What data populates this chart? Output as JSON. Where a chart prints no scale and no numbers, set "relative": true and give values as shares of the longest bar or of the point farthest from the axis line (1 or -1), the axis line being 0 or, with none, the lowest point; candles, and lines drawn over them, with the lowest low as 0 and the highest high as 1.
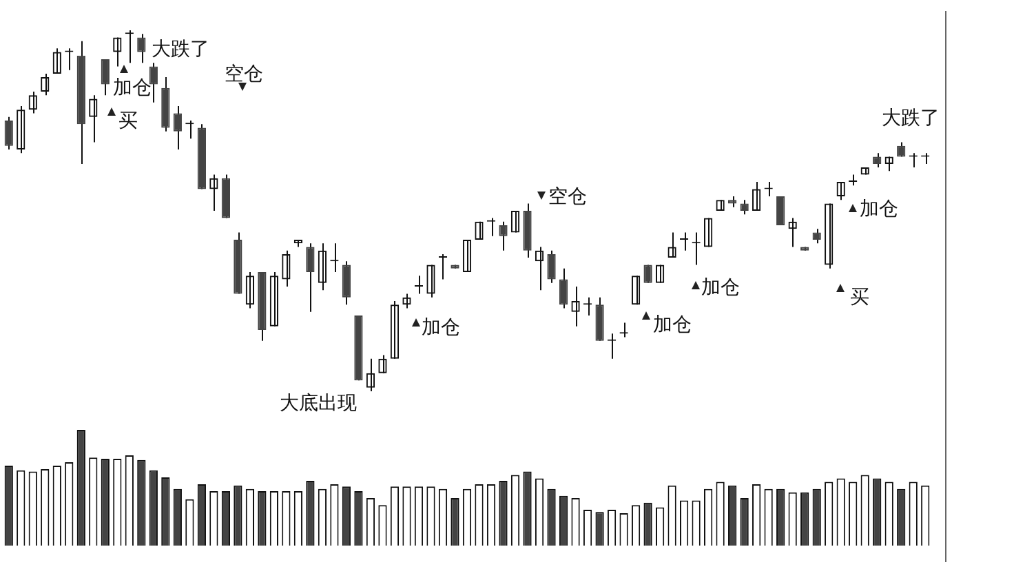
{
  "chart_data": [
    {
      "type": "candlestick",
      "relative": true,
      "categories": [
        null,
        null,
        null,
        null,
        null,
        null,
        null,
        null,
        null,
        null,
        null,
        null,
        null,
        null,
        null,
        null,
        null,
        null,
        null,
        null,
        null,
        null,
        null,
        null,
        null,
        null,
        null,
        null,
        null,
        null,
        null,
        null,
        null,
        null,
        null,
        null,
        null,
        null,
        null,
        null,
        null,
        null,
        null,
        null,
        null,
        null,
        null,
        null,
        null,
        null,
        null,
        null,
        null,
        null,
        null,
        null,
        null,
        null,
        null,
        null,
        null,
        null,
        null,
        null,
        null,
        null,
        null,
        null,
        null,
        null,
        null,
        null,
        null,
        null,
        null,
        null,
        null
      ],
      "ohlc": [
        [
          0.75,
          0.76,
          0.67,
          0.68
        ],
        [
          0.67,
          0.79,
          0.66,
          0.78
        ],
        [
          0.78,
          0.83,
          0.77,
          0.82
        ],
        [
          0.83,
          0.88,
          0.82,
          0.87
        ],
        [
          0.88,
          0.95,
          0.88,
          0.94
        ],
        [
          0.94,
          0.95,
          0.89,
          0.94
        ],
        [
          0.93,
          0.97,
          0.63,
          0.74
        ],
        [
          0.76,
          0.82,
          0.69,
          0.81
        ],
        [
          0.92,
          0.92,
          0.82,
          0.85
        ],
        [
          0.94,
          0.98,
          0.9,
          0.98
        ],
        [
          0.99,
          1,
          0.91,
          0.99
        ],
        [
          0.98,
          0.99,
          0.91,
          0.94
        ],
        [
          0.9,
          0.91,
          0.8,
          0.85
        ],
        [
          0.84,
          0.87,
          0.72,
          0.73
        ],
        [
          0.77,
          0.79,
          0.67,
          0.72
        ],
        [
          0.74,
          0.75,
          0.7,
          0.74
        ],
        [
          0.73,
          0.74,
          0.56,
          0.56
        ],
        [
          0.56,
          0.6,
          0.5,
          0.59
        ],
        [
          0.59,
          0.6,
          0.48,
          0.48
        ],
        [
          0.42,
          0.44,
          0.27,
          0.27
        ],
        [
          0.24,
          0.33,
          0.23,
          0.32
        ],
        [
          0.33,
          0.33,
          0.14,
          0.17
        ],
        [
          0.18,
          0.33,
          0.18,
          0.32
        ],
        [
          0.31,
          0.39,
          0.29,
          0.38
        ],
        [
          0.41,
          0.42,
          0.4,
          0.42
        ],
        [
          0.4,
          0.41,
          0.22,
          0.33
        ],
        [
          0.3,
          0.41,
          0.28,
          0.39
        ],
        [
          0.36,
          0.41,
          0.33,
          0.36
        ],
        [
          0.35,
          0.36,
          0.24,
          0.26
        ],
        [
          0.21,
          0.21,
          0.03,
          0.03
        ],
        [
          0.01,
          0.09,
          0,
          0.05
        ],
        [
          0.05,
          0.1,
          0.05,
          0.09
        ],
        [
          0.09,
          0.25,
          0.09,
          0.24
        ],
        [
          0.24,
          0.27,
          0.23,
          0.26
        ],
        [
          0.29,
          0.32,
          0.27,
          0.29
        ],
        [
          0.27,
          0.35,
          0.26,
          0.35
        ],
        [
          0.37,
          0.38,
          0.31,
          0.37
        ],
        [
          0.35,
          0.35,
          0.34,
          0.34
        ],
        [
          0.33,
          0.42,
          0.33,
          0.42
        ],
        [
          0.42,
          0.47,
          0.42,
          0.47
        ],
        [
          0.47,
          0.48,
          0.43,
          0.47
        ],
        [
          0.46,
          0.47,
          0.39,
          0.43
        ],
        [
          0.44,
          0.5,
          0.44,
          0.5
        ],
        [
          0.5,
          0.52,
          0.37,
          0.39
        ],
        [
          0.36,
          0.4,
          0.28,
          0.39
        ],
        [
          0.38,
          0.39,
          0.3,
          0.31
        ],
        [
          0.31,
          0.34,
          0.23,
          0.24
        ],
        [
          0.22,
          0.29,
          0.18,
          0.25
        ],
        [
          0.24,
          0.26,
          0.21,
          0.24
        ],
        [
          0.24,
          0.26,
          0.14,
          0.14
        ],
        [
          0.14,
          0.16,
          0.09,
          0.14
        ],
        [
          0.16,
          0.19,
          0.15,
          0.16
        ],
        [
          0.24,
          0.32,
          0.24,
          0.32
        ],
        [
          0.35,
          0.35,
          0.3,
          0.3
        ],
        [
          0.3,
          0.35,
          0.3,
          0.35
        ],
        [
          0.37,
          0.44,
          0.37,
          0.4
        ],
        [
          0.42,
          0.44,
          0.39,
          0.42
        ],
        [
          0.41,
          0.44,
          0.35,
          0.41
        ],
        [
          0.4,
          0.48,
          0.4,
          0.48
        ],
        [
          0.5,
          0.53,
          0.5,
          0.53
        ],
        [
          0.53,
          0.54,
          0.51,
          0.52
        ],
        [
          0.52,
          0.53,
          0.49,
          0.5
        ],
        [
          0.5,
          0.58,
          0.5,
          0.56
        ],
        [
          0.56,
          0.58,
          0.54,
          0.56
        ],
        [
          0.54,
          0.54,
          0.46,
          0.46
        ],
        [
          0.45,
          0.48,
          0.4,
          0.47
        ],
        [
          0.4,
          0.4,
          0.39,
          0.39
        ],
        [
          0.44,
          0.45,
          0.41,
          0.42
        ],
        [
          0.35,
          0.52,
          0.34,
          0.52
        ],
        [
          0.54,
          0.58,
          0.53,
          0.58
        ],
        [
          0.58,
          0.6,
          0.57,
          0.58
        ],
        [
          0.6,
          0.62,
          0.6,
          0.62
        ],
        [
          0.65,
          0.66,
          0.62,
          0.63
        ],
        [
          0.63,
          0.65,
          0.61,
          0.65
        ],
        [
          0.68,
          0.69,
          0.65,
          0.65
        ],
        [
          0.65,
          0.66,
          0.62,
          0.65
        ],
        [
          0.65,
          0.66,
          0.63,
          0.65
        ]
      ],
      "colors": [
        "#444444",
        "#111111",
        "#111111",
        "#111111",
        "#111111",
        "#111111",
        "#444444",
        "#111111",
        "#444444",
        "#111111",
        "#111111",
        "#444444",
        "#444444",
        "#444444",
        "#444444",
        "#111111",
        "#444444",
        "#111111",
        "#444444",
        "#444444",
        "#111111",
        "#444444",
        "#111111",
        "#111111",
        "#111111",
        "#444444",
        "#111111",
        "#111111",
        "#444444",
        "#444444",
        "#111111",
        "#111111",
        "#111111",
        "#111111",
        "#111111",
        "#111111",
        "#111111",
        "#444444",
        "#111111",
        "#111111",
        "#111111",
        "#444444",
        "#111111",
        "#444444",
        "#111111",
        "#444444",
        "#444444",
        "#111111",
        "#111111",
        "#444444",
        "#111111",
        "#111111",
        "#111111",
        "#444444",
        "#111111",
        "#111111",
        "#111111",
        "#111111",
        "#111111",
        "#111111",
        "#444444",
        "#444444",
        "#111111",
        "#111111",
        "#444444",
        "#111111",
        "#444444",
        "#444444",
        "#111111",
        "#111111",
        "#111111",
        "#111111",
        "#444444",
        "#111111",
        "#444444",
        "#111111",
        "#111111"
      ],
      "annotations": [
        "大跌了",
        "加仓",
        "买",
        "空仓",
        "大底出现",
        "加仓",
        "空仓",
        "加仓",
        "加仓",
        "买",
        "加仓",
        "大跌了"
      ]
    },
    {
      "type": "bar",
      "relative": true,
      "categories": [
        null,
        null,
        null,
        null,
        null,
        null,
        null,
        null,
        null,
        null,
        null,
        null,
        null,
        null,
        null,
        null,
        null,
        null,
        null,
        null,
        null,
        null,
        null,
        null,
        null,
        null,
        null,
        null,
        null,
        null,
        null,
        null,
        null,
        null,
        null,
        null,
        null,
        null,
        null,
        null,
        null,
        null,
        null,
        null,
        null,
        null,
        null,
        null,
        null,
        null,
        null,
        null,
        null,
        null,
        null,
        null,
        null,
        null,
        null,
        null,
        null,
        null,
        null,
        null,
        null,
        null,
        null,
        null,
        null,
        null,
        null,
        null,
        null,
        null,
        null,
        null,
        null
      ],
      "values": [
        0.69,
        0.65,
        0.64,
        0.66,
        0.69,
        0.72,
        1,
        0.76,
        0.75,
        0.75,
        0.78,
        0.74,
        0.65,
        0.59,
        0.49,
        0.4,
        0.53,
        0.47,
        0.47,
        0.52,
        0.49,
        0.47,
        0.47,
        0.47,
        0.47,
        0.56,
        0.49,
        0.53,
        0.51,
        0.47,
        0.41,
        0.35,
        0.51,
        0.51,
        0.51,
        0.51,
        0.49,
        0.41,
        0.49,
        0.53,
        0.53,
        0.56,
        0.61,
        0.64,
        0.58,
        0.49,
        0.43,
        0.41,
        0.31,
        0.29,
        0.31,
        0.28,
        0.35,
        0.37,
        0.33,
        0.52,
        0.39,
        0.39,
        0.49,
        0.55,
        0.52,
        0.41,
        0.53,
        0.49,
        0.49,
        0.46,
        0.46,
        0.49,
        0.55,
        0.58,
        0.55,
        0.61,
        0.58,
        0.55,
        0.49,
        0.55,
        0.52
      ],
      "colors": [
        "#444444",
        "#ffffff",
        "#ffffff",
        "#ffffff",
        "#ffffff",
        "#ffffff",
        "#444444",
        "#ffffff",
        "#444444",
        "#ffffff",
        "#ffffff",
        "#444444",
        "#444444",
        "#444444",
        "#444444",
        "#ffffff",
        "#444444",
        "#ffffff",
        "#444444",
        "#444444",
        "#ffffff",
        "#444444",
        "#ffffff",
        "#ffffff",
        "#ffffff",
        "#444444",
        "#ffffff",
        "#ffffff",
        "#444444",
        "#444444",
        "#ffffff",
        "#ffffff",
        "#ffffff",
        "#ffffff",
        "#ffffff",
        "#ffffff",
        "#ffffff",
        "#444444",
        "#ffffff",
        "#ffffff",
        "#ffffff",
        "#444444",
        "#ffffff",
        "#444444",
        "#ffffff",
        "#444444",
        "#444444",
        "#ffffff",
        "#ffffff",
        "#444444",
        "#ffffff",
        "#ffffff",
        "#ffffff",
        "#444444",
        "#ffffff",
        "#ffffff",
        "#ffffff",
        "#ffffff",
        "#ffffff",
        "#ffffff",
        "#444444",
        "#444444",
        "#ffffff",
        "#ffffff",
        "#444444",
        "#ffffff",
        "#444444",
        "#444444",
        "#ffffff",
        "#ffffff",
        "#ffffff",
        "#ffffff",
        "#444444",
        "#ffffff",
        "#444444",
        "#ffffff",
        "#ffffff"
      ]
    }
  ]
}
